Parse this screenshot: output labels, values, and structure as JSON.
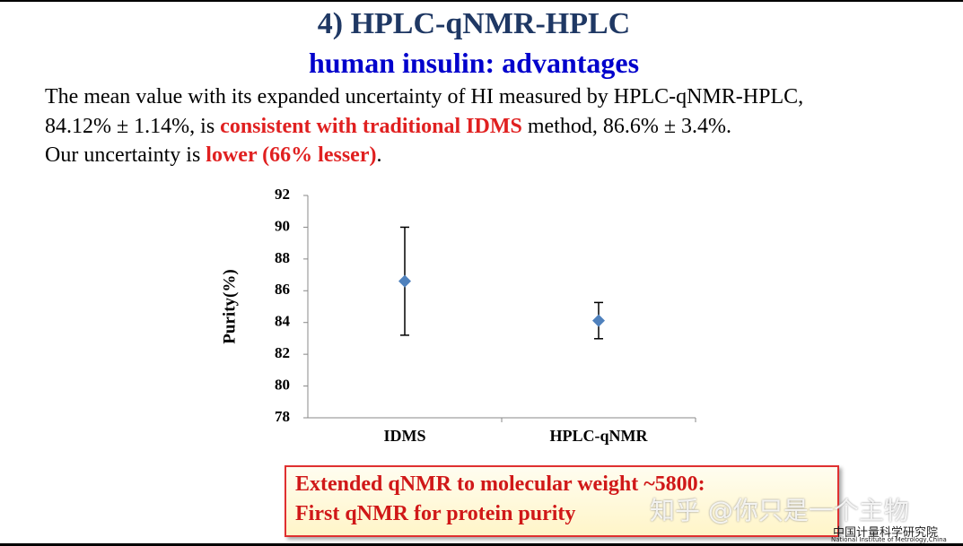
{
  "header": {
    "title": "4) HPLC-qNMR-HPLC",
    "subtitle": "human insulin: advantages"
  },
  "paragraph": {
    "lines": [
      [
        {
          "text": "The mean value with its expanded uncertainty of HI measured by HPLC-qNMR-HPLC,"
        }
      ],
      [
        {
          "text": "84.12% ± 1.14%, is "
        },
        {
          "text": "consistent with traditional IDMS",
          "emphasis": true
        },
        {
          "text": " method, 86.6% ± 3.4%."
        }
      ],
      [
        {
          "text": "Our uncertainty is "
        },
        {
          "text": "lower (66% lesser)",
          "emphasis": true
        },
        {
          "text": "."
        }
      ]
    ]
  },
  "chart_data": {
    "type": "errorbar",
    "y_label": "Purity(%)",
    "categories": [
      "IDMS",
      "HPLC-qNMR"
    ],
    "values": [
      86.6,
      84.12
    ],
    "errors": [
      3.4,
      1.14
    ],
    "color": "#4f81bd",
    "ylim": [
      78,
      92
    ],
    "yticks": [
      78,
      80,
      82,
      84,
      86,
      88,
      90,
      92
    ],
    "grid": false
  },
  "callout": {
    "lines": [
      "Extended qNMR to molecular weight ~5800:",
      "First qNMR for protein purity"
    ]
  },
  "watermark": "知乎 @你只是一个主物",
  "logo": {
    "name": "中国计量科学研究院",
    "english": "National Institute of Metrology,China"
  }
}
